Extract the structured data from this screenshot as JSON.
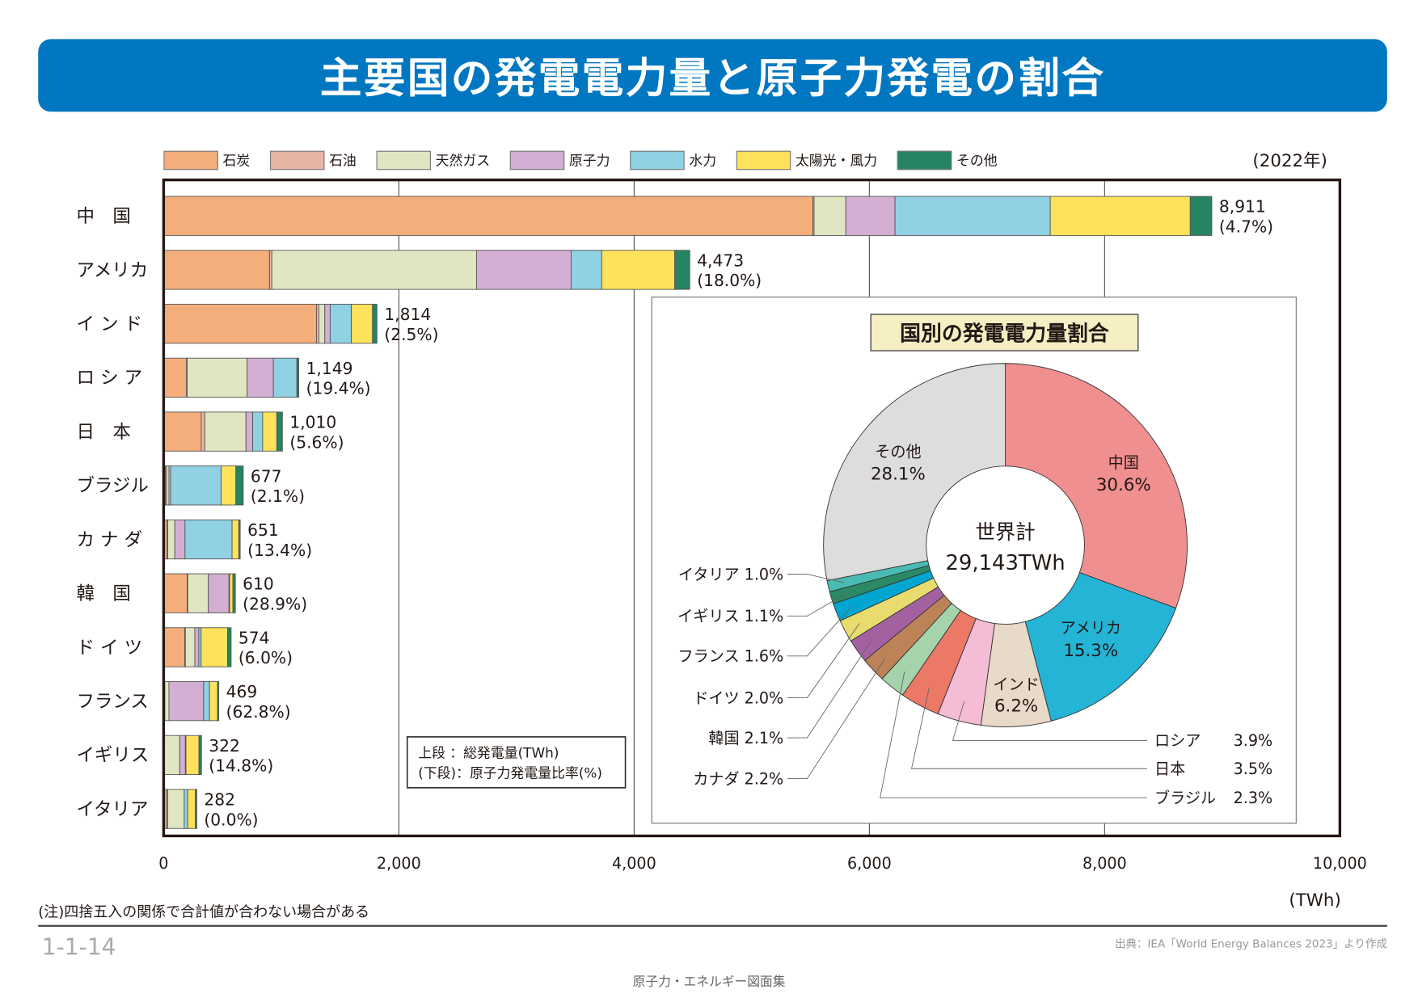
{
  "header": {
    "title": "主要国の発電電力量と原子力発電の割合"
  },
  "footer": {
    "note": "(注)四捨五入の関係で合計値が合わない場合がある",
    "figure_number": "1-1-14",
    "source": "出典：IEA「World Energy Balances 2023」より作成",
    "book_title": "原子力・エネルギー図面集"
  },
  "chart_data": [
    {
      "type": "bar",
      "orientation": "horizontal",
      "stacked": true,
      "year_label": "(2022年)",
      "xlabel": "(TWh)",
      "xlim": [
        0,
        10000
      ],
      "xticks": [
        0,
        2000,
        4000,
        6000,
        8000,
        10000
      ],
      "xtick_labels": [
        "0",
        "2,000",
        "4,000",
        "6,000",
        "8,000",
        "10,000"
      ],
      "grid": true,
      "legend_position": "top",
      "label_box": [
        "上段 ：総発電量(TWh)",
        "(下段)：原子力発電量比率(%)"
      ],
      "categories": [
        "中　国",
        "アメリカ",
        "イ ン ド",
        "ロ シ ア",
        "日　本",
        "ブラジル",
        "カ ナ ダ",
        "韓　国",
        "ド イ ツ",
        "フランス",
        "イギリス",
        "イタリア"
      ],
      "totals": [
        "8,911",
        "4,473",
        "1,814",
        "1,149",
        "1,010",
        "677",
        "651",
        "610",
        "574",
        "469",
        "322",
        "282"
      ],
      "nuclear_share": [
        "(4.7%)",
        "(18.0%)",
        "(2.5%)",
        "(19.4%)",
        "(5.6%)",
        "(2.1%)",
        "(13.4%)",
        "(28.9%)",
        "(6.0%)",
        "(62.8%)",
        "(14.8%)",
        "(0.0%)"
      ],
      "series": [
        {
          "name": "石炭",
          "color": "#f4ae7c",
          "values": [
            5520,
            900,
            1300,
            195,
            320,
            15,
            30,
            200,
            180,
            5,
            5,
            25
          ]
        },
        {
          "name": "石油",
          "color": "#e6b5a6",
          "values": [
            10,
            20,
            20,
            5,
            30,
            10,
            5,
            5,
            5,
            5,
            2,
            10
          ]
        },
        {
          "name": "天然ガス",
          "color": "#e0e6c2",
          "values": [
            270,
            1740,
            50,
            510,
            350,
            20,
            60,
            175,
            80,
            35,
            130,
            140
          ]
        },
        {
          "name": "原子力",
          "color": "#d3afd3",
          "values": [
            418,
            805,
            46,
            223,
            57,
            14,
            87,
            176,
            34,
            295,
            48,
            0
          ]
        },
        {
          "name": "水力",
          "color": "#90d1e4",
          "values": [
            1320,
            260,
            180,
            200,
            85,
            430,
            400,
            5,
            20,
            50,
            5,
            30
          ]
        },
        {
          "name": "太陽光・風力",
          "color": "#fee25b",
          "values": [
            1190,
            620,
            180,
            4,
            120,
            125,
            57,
            28,
            225,
            68,
            110,
            65
          ]
        },
        {
          "name": "その他",
          "color": "#268463",
          "values": [
            183,
            128,
            38,
            12,
            48,
            63,
            12,
            21,
            30,
            11,
            22,
            12
          ]
        }
      ]
    },
    {
      "type": "pie",
      "donut": true,
      "title": "国別の発電電力量割合",
      "center_label": [
        "世界計",
        "29,143TWh"
      ],
      "slices": [
        {
          "label": "中国",
          "value": 30.6,
          "text": "30.6%",
          "color": "#ef8f8f"
        },
        {
          "label": "アメリカ",
          "value": 15.3,
          "text": "15.3%",
          "color": "#23b4d6"
        },
        {
          "label": "インド",
          "value": 6.2,
          "text": "6.2%",
          "color": "#e8dac8"
        },
        {
          "label": "ロシア",
          "value": 3.9,
          "text": "3.9%",
          "color": "#f4bcd5"
        },
        {
          "label": "日本",
          "value": 3.5,
          "text": "3.5%",
          "color": "#ec7867"
        },
        {
          "label": "ブラジル",
          "value": 2.3,
          "text": "2.3%",
          "color": "#a5d4ac"
        },
        {
          "label": "カナダ",
          "value": 2.2,
          "text": "2.2%",
          "color": "#bd8358"
        },
        {
          "label": "韓国",
          "value": 2.1,
          "text": "2.1%",
          "color": "#a461a0"
        },
        {
          "label": "ドイツ",
          "value": 2.0,
          "text": "2.0%",
          "color": "#e8dc6f"
        },
        {
          "label": "フランス",
          "value": 1.6,
          "text": "1.6%",
          "color": "#00a6cf"
        },
        {
          "label": "イギリス",
          "value": 1.1,
          "text": "1.1%",
          "color": "#2a8a66"
        },
        {
          "label": "イタリア",
          "value": 1.0,
          "text": "1.0%",
          "color": "#4abbb3"
        },
        {
          "label": "その他",
          "value": 28.1,
          "text": "28.1%",
          "color": "#dddddd"
        }
      ]
    }
  ]
}
